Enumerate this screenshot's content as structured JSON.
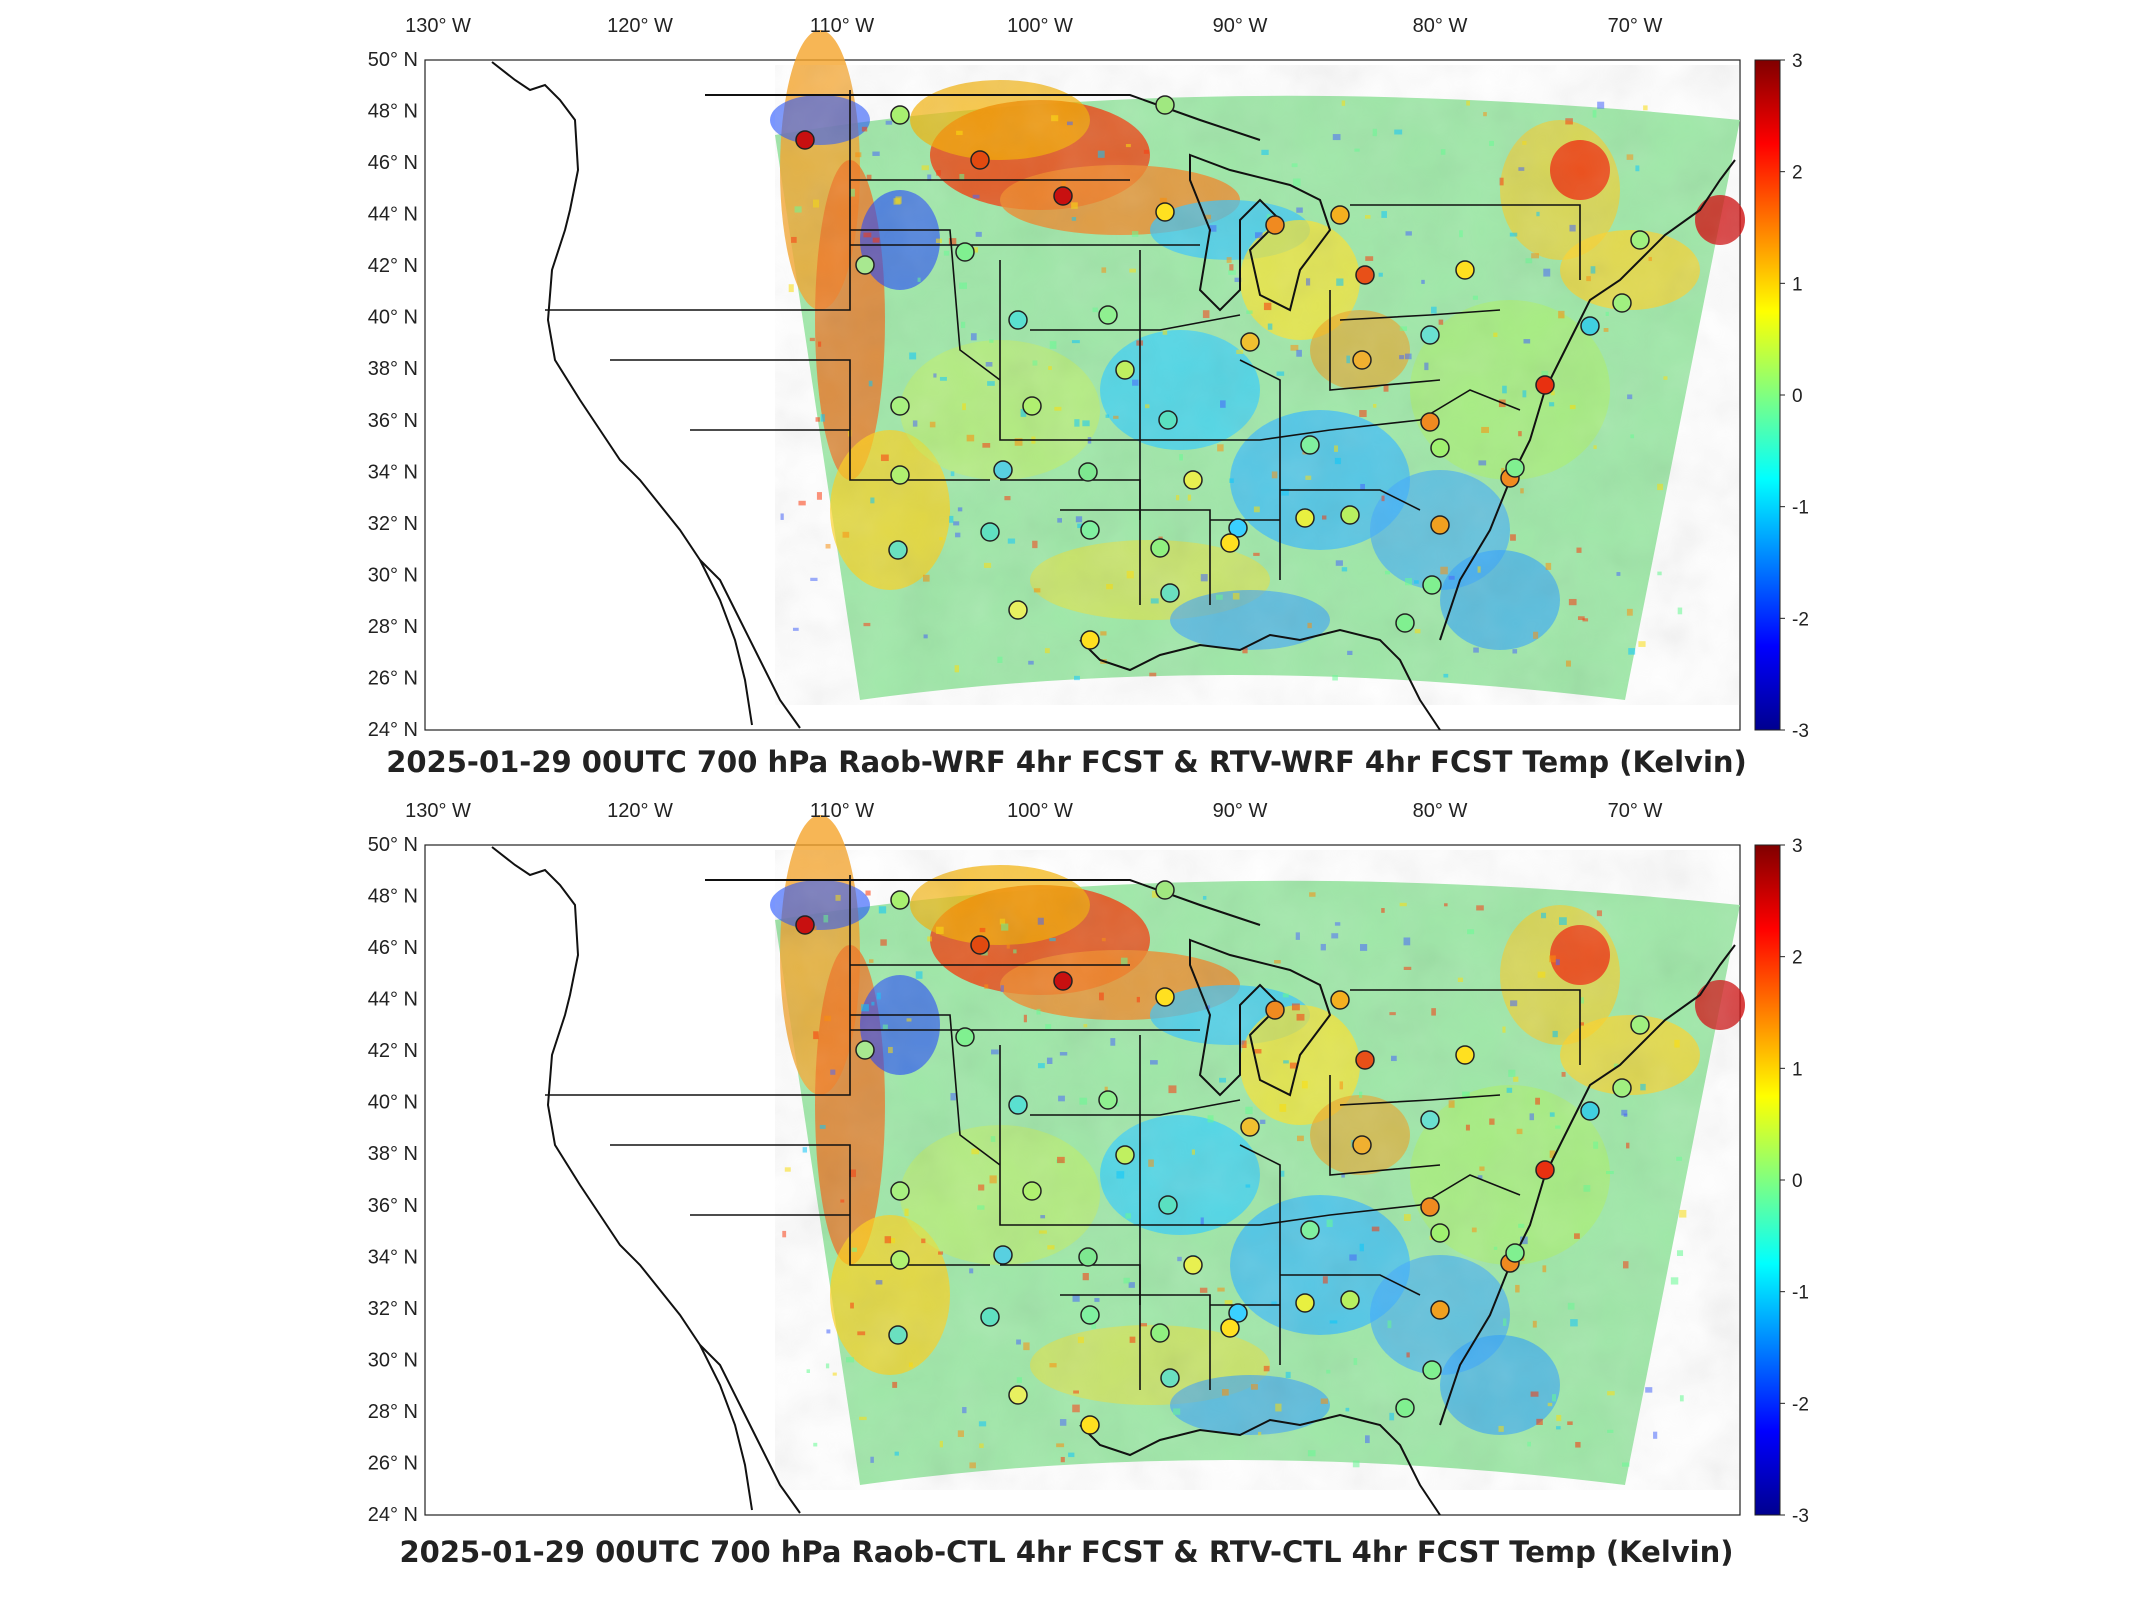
{
  "panels": [
    {
      "title": "2025-01-29 00UTC 700 hPa Raob-WRF 4hr FCST & RTV-WRF 4hr FCST Temp (Kelvin)",
      "lon_labels": [
        "130",
        "120",
        "110",
        "100",
        "90",
        "80",
        "70"
      ],
      "lat_labels": [
        "50",
        "48",
        "46",
        "44",
        "42",
        "40",
        "38",
        "36",
        "34",
        "32",
        "30",
        "28",
        "26",
        "24"
      ],
      "lon_suffix": "W",
      "lat_suffix": "N",
      "colorbar_ticks": [
        "3",
        "2",
        "1",
        "0",
        "-1",
        "-2",
        "-3"
      ]
    },
    {
      "title": "2025-01-29 00UTC 700 hPa Raob-CTL 4hr FCST & RTV-CTL 4hr FCST Temp (Kelvin)",
      "lon_labels": [
        "130",
        "120",
        "110",
        "100",
        "90",
        "80",
        "70"
      ],
      "lat_labels": [
        "50",
        "48",
        "46",
        "44",
        "42",
        "40",
        "38",
        "36",
        "34",
        "32",
        "30",
        "28",
        "26",
        "24"
      ],
      "lon_suffix": "W",
      "lat_suffix": "N",
      "colorbar_ticks": [
        "3",
        "2",
        "1",
        "0",
        "-1",
        "-2",
        "-3"
      ]
    }
  ],
  "colorbar": {
    "range": [
      -3,
      3
    ],
    "colormap": "jet",
    "colors": [
      "#00008f",
      "#0000ff",
      "#00ffff",
      "#80ff80",
      "#ffff00",
      "#ff0000",
      "#800000"
    ]
  },
  "colors": {
    "coast": "#111111",
    "frame": "#222222"
  }
}
